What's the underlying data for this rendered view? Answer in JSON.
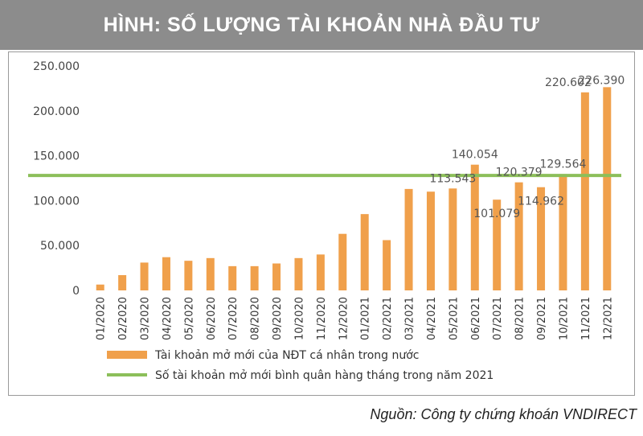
{
  "title": "HÌNH: SỐ LƯỢNG TÀI KHOẢN NHÀ ĐẦU TƯ",
  "source": "Nguồn: Công ty chứng khoán VNDIRECT",
  "colors": {
    "bar": "#f0a04b",
    "line": "#8cbf5a",
    "header_bg": "#8c8c8c"
  },
  "chart_data": {
    "type": "bar",
    "categories": [
      "01/2020",
      "02/2020",
      "03/2020",
      "04/2020",
      "05/2020",
      "06/2020",
      "07/2020",
      "08/2020",
      "09/2020",
      "10/2020",
      "11/2020",
      "12/2020",
      "01/2021",
      "02/2021",
      "03/2021",
      "04/2021",
      "05/2021",
      "06/2021",
      "07/2021",
      "08/2021",
      "09/2021",
      "10/2021",
      "11/2021",
      "12/2021"
    ],
    "series": [
      {
        "name": "Tài khoản mở mới của NĐT cá nhân trong nước",
        "type": "bar",
        "values": [
          6500,
          17000,
          31000,
          37000,
          33000,
          36000,
          27000,
          27000,
          30000,
          36000,
          40000,
          63000,
          85000,
          56000,
          113000,
          110000,
          113543,
          140054,
          101079,
          120379,
          114962,
          129564,
          220602,
          226390
        ]
      },
      {
        "name": "Số tài khoản mở mới bình quân hàng tháng trong năm 2021",
        "type": "line",
        "value": 128000
      }
    ],
    "data_labels": [
      {
        "text": "113.543",
        "index": 16
      },
      {
        "text": "140.054",
        "index": 17
      },
      {
        "text": "101.079",
        "index": 18
      },
      {
        "text": "120.379",
        "index": 19
      },
      {
        "text": "114.962",
        "index": 20
      },
      {
        "text": "129.564",
        "index": 21
      },
      {
        "text": "220.602",
        "index": 22
      },
      {
        "text": "226.390",
        "index": 23
      }
    ],
    "yticks": [
      "0",
      "50.000",
      "100.000",
      "150.000",
      "200.000",
      "250.000"
    ],
    "ylim": [
      0,
      250000
    ],
    "grid": false,
    "legend_position": "bottom"
  }
}
